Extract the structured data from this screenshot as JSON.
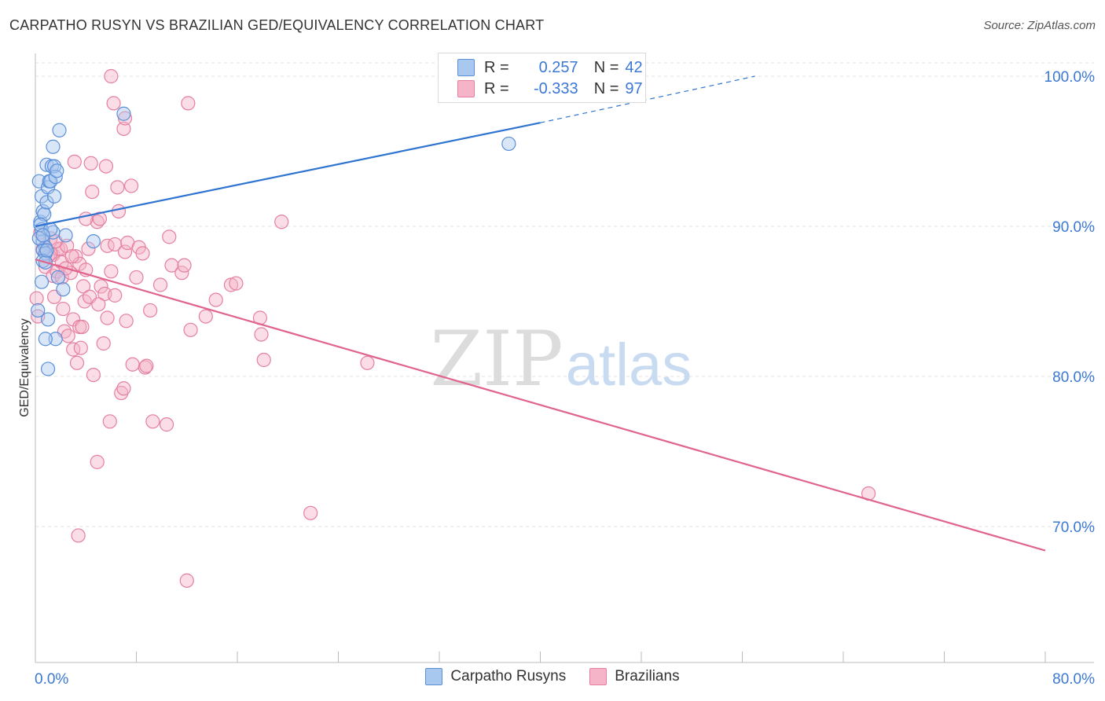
{
  "title": "CARPATHO RUSYN VS BRAZILIAN GED/EQUIVALENCY CORRELATION CHART",
  "source": "Source: ZipAtlas.com",
  "watermark": {
    "zip": "ZIP",
    "atlas": "atlas"
  },
  "colors": {
    "blue_fill": "#a9c8f0",
    "blue_stroke": "#5b8fd8",
    "blue_line": "#2f74d0",
    "pink_fill": "#f5b4c8",
    "pink_stroke": "#e57fa0",
    "pink_line": "#e0648e",
    "accent_text": "#3b78d4",
    "grid": "#e3e3e3"
  },
  "legend": {
    "r_label": "R =",
    "n_label": "N =",
    "series": [
      {
        "r": "0.257",
        "n": "42"
      },
      {
        "r": "-0.333",
        "n": "97"
      }
    ]
  },
  "chart_data": {
    "type": "scatter",
    "title": "CARPATHO RUSYN VS BRAZILIAN GED/EQUIVALENCY CORRELATION CHART",
    "xlabel": "",
    "ylabel": "GED/Equivalency",
    "xlim": [
      0,
      80
    ],
    "ylim": [
      60,
      102
    ],
    "x_tick_labels": [
      "0.0%",
      "80.0%"
    ],
    "y_ticks": [
      70,
      80,
      90,
      100
    ],
    "y_tick_labels": [
      "70.0%",
      "80.0%",
      "90.0%",
      "100.0%"
    ],
    "grid": true,
    "legend_position": "top-center",
    "series": [
      {
        "name": "Carpatho Rusyns",
        "color": "blue",
        "trend": {
          "x0": 0,
          "y0": 90.0,
          "x1": 40,
          "y1": 96.9,
          "dash_x1": 57,
          "dash_y1": 100.0
        },
        "points": [
          [
            0.2,
            84.4
          ],
          [
            0.4,
            90.3
          ],
          [
            0.3,
            93.0
          ],
          [
            0.5,
            92.0
          ],
          [
            0.6,
            91.0
          ],
          [
            0.5,
            89.8
          ],
          [
            0.6,
            89.0
          ],
          [
            0.7,
            90.8
          ],
          [
            0.8,
            88.6
          ],
          [
            0.6,
            88.4
          ],
          [
            0.8,
            88.2
          ],
          [
            0.6,
            87.7
          ],
          [
            0.5,
            86.3
          ],
          [
            0.9,
            91.6
          ],
          [
            0.9,
            94.1
          ],
          [
            1.0,
            92.6
          ],
          [
            1.1,
            93.0
          ],
          [
            1.2,
            93.0
          ],
          [
            1.3,
            94.0
          ],
          [
            1.4,
            95.3
          ],
          [
            1.5,
            94.0
          ],
          [
            1.6,
            93.3
          ],
          [
            1.7,
            93.7
          ],
          [
            1.5,
            92.0
          ],
          [
            1.6,
            82.5
          ],
          [
            1.8,
            86.6
          ],
          [
            1.9,
            96.4
          ],
          [
            2.2,
            85.8
          ],
          [
            2.4,
            89.4
          ],
          [
            4.6,
            89.0
          ],
          [
            7.0,
            97.5
          ],
          [
            37.5,
            95.5
          ],
          [
            0.8,
            82.5
          ],
          [
            1.0,
            83.8
          ],
          [
            1.0,
            80.5
          ],
          [
            0.3,
            89.2
          ],
          [
            0.8,
            87.6
          ],
          [
            1.4,
            89.6
          ],
          [
            0.4,
            90.1
          ],
          [
            0.9,
            88.4
          ],
          [
            1.2,
            89.8
          ],
          [
            0.6,
            89.4
          ]
        ]
      },
      {
        "name": "Brazilians",
        "color": "pink",
        "trend": {
          "x0": 0,
          "y0": 87.8,
          "x1": 80,
          "y1": 68.4
        },
        "points": [
          [
            0.1,
            85.2
          ],
          [
            0.2,
            84.0
          ],
          [
            0.6,
            88.5
          ],
          [
            0.8,
            87.3
          ],
          [
            1.0,
            88.0
          ],
          [
            1.2,
            89.2
          ],
          [
            1.4,
            88.1
          ],
          [
            1.4,
            86.7
          ],
          [
            1.5,
            85.3
          ],
          [
            1.7,
            87.0
          ],
          [
            1.8,
            88.5
          ],
          [
            2.0,
            88.5
          ],
          [
            2.1,
            86.6
          ],
          [
            2.2,
            84.5
          ],
          [
            2.3,
            83.0
          ],
          [
            2.5,
            88.7
          ],
          [
            2.6,
            82.7
          ],
          [
            2.8,
            86.9
          ],
          [
            3.0,
            83.8
          ],
          [
            3.0,
            81.8
          ],
          [
            3.1,
            94.3
          ],
          [
            3.2,
            88.0
          ],
          [
            3.3,
            80.9
          ],
          [
            3.5,
            83.3
          ],
          [
            3.5,
            87.5
          ],
          [
            3.6,
            81.9
          ],
          [
            3.8,
            86.0
          ],
          [
            3.9,
            85.0
          ],
          [
            4.0,
            87.1
          ],
          [
            4.2,
            88.5
          ],
          [
            4.3,
            85.3
          ],
          [
            4.4,
            94.2
          ],
          [
            4.5,
            92.3
          ],
          [
            4.6,
            80.1
          ],
          [
            4.9,
            74.3
          ],
          [
            4.9,
            90.3
          ],
          [
            5.1,
            90.5
          ],
          [
            5.2,
            86.0
          ],
          [
            5.4,
            82.2
          ],
          [
            5.5,
            85.5
          ],
          [
            5.6,
            94.0
          ],
          [
            5.7,
            83.9
          ],
          [
            5.7,
            88.7
          ],
          [
            5.9,
            77.0
          ],
          [
            6.0,
            87.0
          ],
          [
            6.2,
            98.2
          ],
          [
            6.3,
            85.4
          ],
          [
            6.3,
            88.8
          ],
          [
            6.5,
            92.6
          ],
          [
            6.6,
            91.0
          ],
          [
            6.8,
            78.9
          ],
          [
            7.0,
            96.5
          ],
          [
            7.0,
            79.2
          ],
          [
            7.1,
            97.2
          ],
          [
            7.1,
            88.3
          ],
          [
            7.3,
            88.9
          ],
          [
            7.6,
            92.7
          ],
          [
            7.7,
            80.8
          ],
          [
            8.2,
            88.6
          ],
          [
            8.5,
            88.2
          ],
          [
            8.7,
            80.6
          ],
          [
            8.8,
            80.7
          ],
          [
            9.1,
            84.4
          ],
          [
            9.3,
            77.0
          ],
          [
            9.9,
            86.1
          ],
          [
            10.4,
            76.8
          ],
          [
            10.6,
            89.3
          ],
          [
            10.8,
            87.4
          ],
          [
            11.6,
            86.9
          ],
          [
            11.8,
            87.4
          ],
          [
            12.0,
            66.4
          ],
          [
            12.1,
            98.2
          ],
          [
            12.3,
            83.1
          ],
          [
            13.5,
            84.0
          ],
          [
            14.3,
            85.1
          ],
          [
            15.5,
            86.1
          ],
          [
            15.9,
            86.2
          ],
          [
            17.8,
            83.9
          ],
          [
            17.9,
            82.8
          ],
          [
            18.1,
            81.1
          ],
          [
            19.5,
            90.3
          ],
          [
            21.8,
            70.9
          ],
          [
            26.3,
            80.9
          ],
          [
            66.0,
            72.2
          ],
          [
            6.0,
            100.0
          ],
          [
            3.4,
            69.4
          ],
          [
            1.2,
            88.2
          ],
          [
            2.1,
            87.6
          ],
          [
            2.9,
            88.0
          ],
          [
            4.0,
            90.5
          ],
          [
            5.0,
            84.8
          ],
          [
            7.2,
            83.7
          ],
          [
            0.4,
            89.6
          ],
          [
            1.6,
            89.0
          ],
          [
            2.4,
            87.2
          ],
          [
            3.7,
            83.3
          ],
          [
            8.0,
            86.6
          ]
        ]
      }
    ]
  }
}
